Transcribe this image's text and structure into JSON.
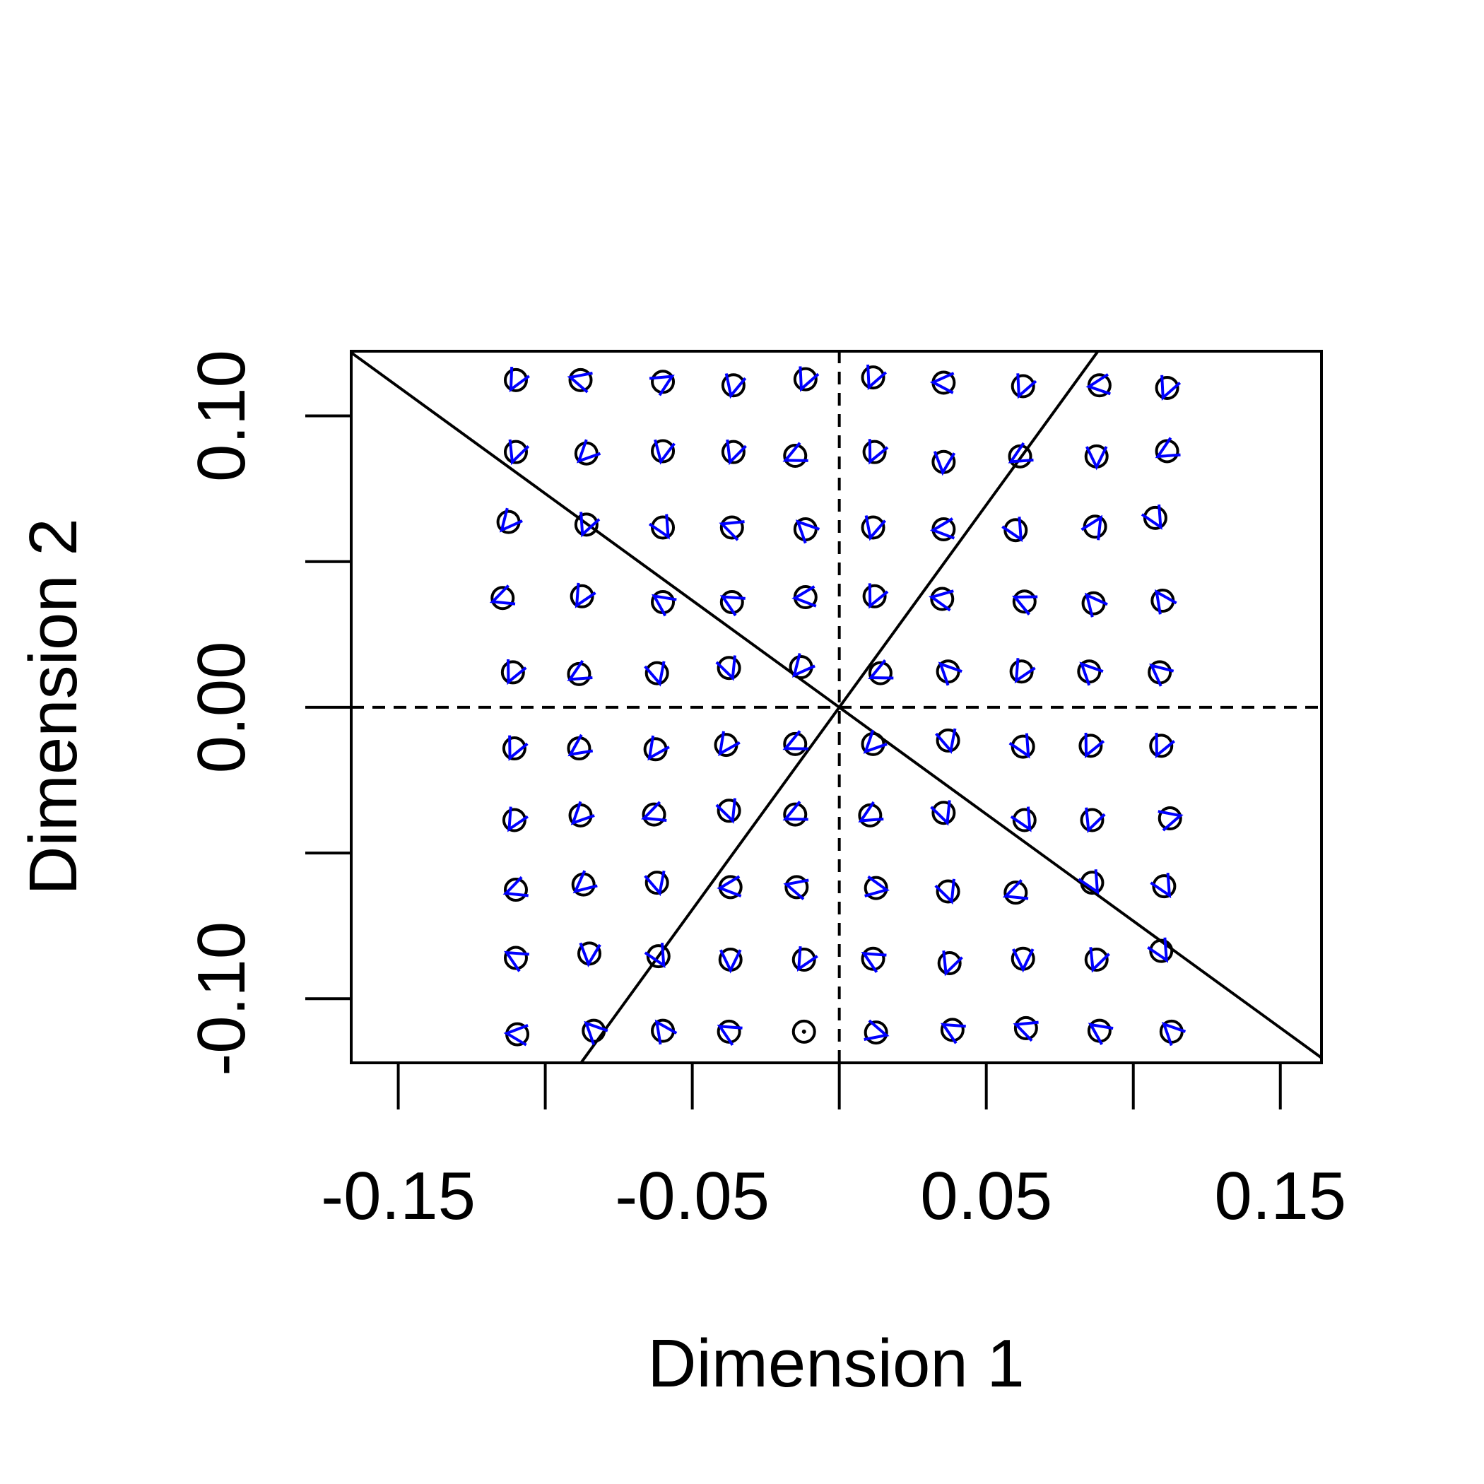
{
  "chart_data": {
    "type": "scatter",
    "title": "",
    "xlabel": "Dimension 1",
    "ylabel": "Dimension 2",
    "xlim": [
      -0.166,
      0.164
    ],
    "ylim": [
      -0.122,
      0.1222
    ],
    "x_ticks": [
      -0.15,
      -0.1,
      -0.05,
      0.0,
      0.05,
      0.1,
      0.15
    ],
    "x_tick_labels": [
      "-0.15",
      "",
      "-0.05",
      "",
      "0.05",
      "",
      "0.15"
    ],
    "y_ticks": [
      -0.1,
      -0.05,
      0.0,
      0.05,
      0.1
    ],
    "y_tick_labels": [
      "-0.10",
      "",
      "0.00",
      "",
      "0.10"
    ],
    "grid": false,
    "reference_lines": [
      {
        "kind": "vertical",
        "x": 0.0,
        "style": "dashed"
      },
      {
        "kind": "horizontal",
        "y": 0.0,
        "style": "dashed"
      },
      {
        "kind": "line-through-origin",
        "slope": -0.7333,
        "style": "solid"
      },
      {
        "kind": "line-through-origin",
        "slope": 1.3888,
        "style": "solid"
      }
    ],
    "colors": {
      "points": "#000000",
      "arrows": "#0000ff",
      "lines": "#000000"
    },
    "points": [
      {
        "x": -0.11,
        "y": 0.1123,
        "a": 242
      },
      {
        "x": -0.088,
        "y": 0.1123,
        "a": 165
      },
      {
        "x": -0.06,
        "y": 0.1117,
        "a": 31
      },
      {
        "x": -0.036,
        "y": 0.1105,
        "a": 256
      },
      {
        "x": -0.0115,
        "y": 0.1126,
        "a": 247
      },
      {
        "x": 0.0115,
        "y": 0.1132,
        "a": 247
      },
      {
        "x": 0.0355,
        "y": 0.1114,
        "a": 178
      },
      {
        "x": 0.0625,
        "y": 0.1102,
        "a": 247
      },
      {
        "x": 0.0885,
        "y": 0.1105,
        "a": 187
      },
      {
        "x": 0.1115,
        "y": 0.1096,
        "a": 247
      },
      {
        "x": -0.11,
        "y": 0.0876,
        "a": 250
      },
      {
        "x": -0.086,
        "y": 0.0871,
        "a": 225
      },
      {
        "x": -0.06,
        "y": 0.0879,
        "a": 259
      },
      {
        "x": -0.036,
        "y": 0.0876,
        "a": 251
      },
      {
        "x": -0.015,
        "y": 0.0863,
        "a": 205
      },
      {
        "x": 0.012,
        "y": 0.0876,
        "a": 245
      },
      {
        "x": 0.0355,
        "y": 0.0842,
        "a": 265
      },
      {
        "x": 0.0615,
        "y": 0.0861,
        "a": 210
      },
      {
        "x": 0.0875,
        "y": 0.0861,
        "a": 270
      },
      {
        "x": 0.1115,
        "y": 0.0879,
        "a": 210
      },
      {
        "x": -0.1125,
        "y": 0.0636,
        "a": 230
      },
      {
        "x": -0.086,
        "y": 0.0627,
        "a": 248
      },
      {
        "x": -0.06,
        "y": 0.0617,
        "a": 300
      },
      {
        "x": -0.0365,
        "y": 0.0617,
        "a": 160
      },
      {
        "x": -0.0115,
        "y": 0.0611,
        "a": 135
      },
      {
        "x": 0.0115,
        "y": 0.0617,
        "a": 255
      },
      {
        "x": 0.0355,
        "y": 0.0611,
        "a": 185
      },
      {
        "x": 0.06,
        "y": 0.0608,
        "a": 300
      },
      {
        "x": 0.087,
        "y": 0.062,
        "a": 58
      },
      {
        "x": 0.1075,
        "y": 0.065,
        "a": 300
      },
      {
        "x": -0.1145,
        "y": 0.0375,
        "a": 200
      },
      {
        "x": -0.0875,
        "y": 0.0381,
        "a": 240
      },
      {
        "x": -0.06,
        "y": 0.0361,
        "a": 145
      },
      {
        "x": -0.0365,
        "y": 0.0361,
        "a": 150
      },
      {
        "x": -0.0115,
        "y": 0.0378,
        "a": 185
      },
      {
        "x": 0.012,
        "y": 0.0381,
        "a": 245
      },
      {
        "x": 0.035,
        "y": 0.0372,
        "a": 170
      },
      {
        "x": 0.063,
        "y": 0.0363,
        "a": 155
      },
      {
        "x": 0.0865,
        "y": 0.0357,
        "a": 130
      },
      {
        "x": 0.11,
        "y": 0.0366,
        "a": 125
      },
      {
        "x": -0.111,
        "y": 0.012,
        "a": 245
      },
      {
        "x": -0.0885,
        "y": 0.0114,
        "a": 210
      },
      {
        "x": -0.062,
        "y": 0.0117,
        "a": 285
      },
      {
        "x": -0.0375,
        "y": 0.0135,
        "a": 290
      },
      {
        "x": -0.013,
        "y": 0.0138,
        "a": 230
      },
      {
        "x": 0.014,
        "y": 0.0117,
        "a": 205
      },
      {
        "x": 0.037,
        "y": 0.0123,
        "a": 135
      },
      {
        "x": 0.062,
        "y": 0.0123,
        "a": 240
      },
      {
        "x": 0.085,
        "y": 0.0123,
        "a": 135
      },
      {
        "x": 0.109,
        "y": 0.012,
        "a": 140
      },
      {
        "x": -0.1105,
        "y": -0.0141,
        "a": 245
      },
      {
        "x": -0.0885,
        "y": -0.0141,
        "a": 215
      },
      {
        "x": -0.0625,
        "y": -0.0144,
        "a": 235
      },
      {
        "x": -0.0385,
        "y": -0.0129,
        "a": 235
      },
      {
        "x": -0.015,
        "y": -0.0126,
        "a": 205
      },
      {
        "x": 0.0115,
        "y": -0.0126,
        "a": 225
      },
      {
        "x": 0.037,
        "y": -0.0114,
        "a": 285
      },
      {
        "x": 0.0625,
        "y": -0.0135,
        "a": 300
      },
      {
        "x": 0.0855,
        "y": -0.0132,
        "a": 245
      },
      {
        "x": 0.1095,
        "y": -0.0132,
        "a": 245
      },
      {
        "x": -0.1105,
        "y": -0.0387,
        "a": 240
      },
      {
        "x": -0.088,
        "y": -0.0371,
        "a": 225
      },
      {
        "x": -0.063,
        "y": -0.0368,
        "a": 200
      },
      {
        "x": -0.0375,
        "y": -0.0355,
        "a": 290
      },
      {
        "x": -0.015,
        "y": -0.0368,
        "a": 205
      },
      {
        "x": 0.0105,
        "y": -0.0371,
        "a": 210
      },
      {
        "x": 0.0355,
        "y": -0.0362,
        "a": 290
      },
      {
        "x": 0.063,
        "y": -0.0387,
        "a": 300
      },
      {
        "x": 0.086,
        "y": -0.0387,
        "a": 250
      },
      {
        "x": 0.1125,
        "y": -0.0381,
        "a": 15
      },
      {
        "x": -0.11,
        "y": -0.0626,
        "a": 200
      },
      {
        "x": -0.087,
        "y": -0.0608,
        "a": 220
      },
      {
        "x": -0.062,
        "y": -0.0602,
        "a": 285
      },
      {
        "x": -0.037,
        "y": -0.0617,
        "a": 185
      },
      {
        "x": -0.0145,
        "y": -0.0617,
        "a": 165
      },
      {
        "x": 0.0125,
        "y": -0.062,
        "a": 350
      },
      {
        "x": 0.037,
        "y": -0.0632,
        "a": 290
      },
      {
        "x": 0.06,
        "y": -0.0636,
        "a": 200
      },
      {
        "x": 0.086,
        "y": -0.0602,
        "a": 300
      },
      {
        "x": 0.1105,
        "y": -0.0614,
        "a": 300
      },
      {
        "x": -0.11,
        "y": -0.086,
        "a": 150
      },
      {
        "x": -0.085,
        "y": -0.0845,
        "a": 265
      },
      {
        "x": -0.0615,
        "y": -0.0854,
        "a": 300
      },
      {
        "x": -0.037,
        "y": -0.0866,
        "a": 270
      },
      {
        "x": -0.012,
        "y": -0.0866,
        "a": 240
      },
      {
        "x": 0.0115,
        "y": -0.0863,
        "a": 150
      },
      {
        "x": 0.0375,
        "y": -0.0878,
        "a": 250
      },
      {
        "x": 0.0625,
        "y": -0.0863,
        "a": 270
      },
      {
        "x": 0.0875,
        "y": -0.0866,
        "a": 250
      },
      {
        "x": 0.1095,
        "y": -0.0836,
        "a": 300
      },
      {
        "x": -0.1095,
        "y": -0.1122,
        "a": 175
      },
      {
        "x": -0.0835,
        "y": -0.111,
        "a": 135
      },
      {
        "x": -0.06,
        "y": -0.111,
        "a": 125
      },
      {
        "x": -0.0375,
        "y": -0.1113,
        "a": 150
      },
      {
        "x": -0.012,
        "y": -0.1113,
        "a": null
      },
      {
        "x": 0.0125,
        "y": -0.1116,
        "a": 345
      },
      {
        "x": 0.0385,
        "y": -0.1107,
        "a": 150
      },
      {
        "x": 0.0635,
        "y": -0.1101,
        "a": 160
      },
      {
        "x": 0.0885,
        "y": -0.111,
        "a": 145
      },
      {
        "x": 0.113,
        "y": -0.1113,
        "a": 135
      }
    ]
  }
}
